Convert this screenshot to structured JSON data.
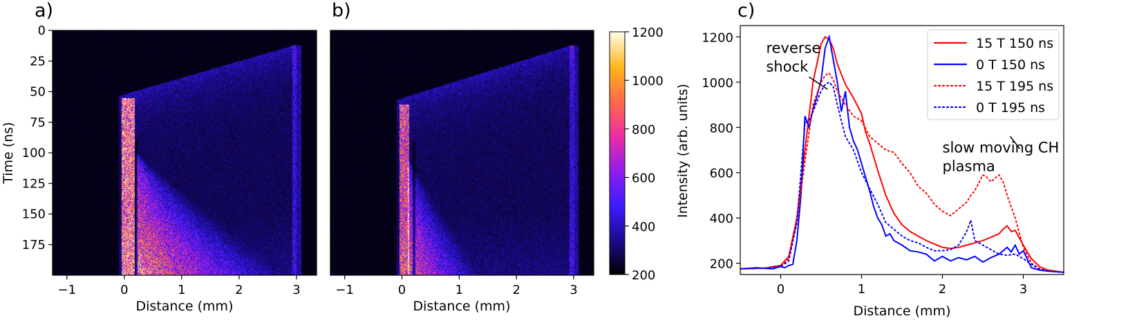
{
  "chart_data": [
    {
      "panel": "a)",
      "type": "heatmap",
      "xlabel": "Distance (mm)",
      "ylabel": "Time (ns)",
      "xlim": [
        -1.25,
        3.35
      ],
      "ylim": [
        0,
        200
      ],
      "y_inverted": true,
      "xticks": [
        -1,
        0,
        1,
        2,
        3
      ],
      "yticks": [
        0,
        25,
        50,
        75,
        100,
        125,
        150,
        175
      ],
      "colormap": "gnuplot2",
      "features": {
        "reverse_shock_column": {
          "x": [
            -0.05,
            0.18
          ],
          "t_start": 55
        },
        "ch_plasma_region": {
          "x": [
            0.2,
            2.8
          ],
          "t_start": 100
        },
        "precursor_front": {
          "t0_x": 0.0,
          "t0": 52,
          "x1": 2.95,
          "t1": 12
        },
        "far_edge": {
          "x": 3.0
        }
      }
    },
    {
      "panel": "b)",
      "type": "heatmap",
      "xlabel": "Distance (mm)",
      "xlim": [
        -1.25,
        3.35
      ],
      "ylim": [
        0,
        200
      ],
      "y_inverted": true,
      "xticks": [
        -1,
        0,
        1,
        2,
        3
      ],
      "colormap": "gnuplot2",
      "features": {
        "reverse_shock_column": {
          "x": [
            -0.05,
            0.12
          ],
          "t_start": 60
        },
        "ch_plasma_region": {
          "x": [
            0.1,
            1.4
          ],
          "t_start": 105
        },
        "precursor_front": {
          "t0_x": 0.0,
          "t0": 55,
          "x1": 2.95,
          "t1": 12
        },
        "far_edge": {
          "x": 3.0
        }
      }
    },
    {
      "panel": "colorbar",
      "type": "heatmap",
      "range": [
        200,
        1200
      ],
      "ticks": [
        200,
        400,
        600,
        800,
        1000,
        1200
      ],
      "colormap": "gnuplot2"
    },
    {
      "panel": "c)",
      "type": "line",
      "xlabel": "Distance (mm)",
      "ylabel": "Intensity (arb. units)",
      "xlim": [
        -0.5,
        3.5
      ],
      "ylim": [
        150,
        1250
      ],
      "xticks": [
        0,
        1,
        2,
        3
      ],
      "yticks": [
        200,
        400,
        600,
        800,
        1000,
        1200
      ],
      "legend_position": "top-right",
      "series": [
        {
          "name": "15 T 150 ns",
          "color": "#ff0000",
          "dash": "solid",
          "x": [
            -0.5,
            -0.2,
            0.0,
            0.1,
            0.2,
            0.3,
            0.4,
            0.5,
            0.55,
            0.6,
            0.65,
            0.7,
            0.8,
            0.9,
            1.0,
            1.05,
            1.1,
            1.2,
            1.3,
            1.4,
            1.5,
            1.6,
            1.7,
            1.8,
            1.9,
            2.0,
            2.1,
            2.2,
            2.3,
            2.4,
            2.5,
            2.6,
            2.7,
            2.75,
            2.8,
            2.85,
            2.9,
            3.0,
            3.1,
            3.2,
            3.3,
            3.4,
            3.5
          ],
          "y": [
            175,
            178,
            190,
            230,
            400,
            700,
            1000,
            1170,
            1200,
            1190,
            1150,
            1080,
            990,
            930,
            860,
            780,
            730,
            610,
            500,
            420,
            370,
            340,
            320,
            300,
            285,
            270,
            265,
            270,
            280,
            290,
            300,
            315,
            330,
            350,
            365,
            340,
            345,
            280,
            220,
            185,
            170,
            165,
            160
          ]
        },
        {
          "name": "0 T 150 ns",
          "color": "#0000ff",
          "dash": "solid",
          "x": [
            -0.5,
            -0.3,
            -0.1,
            0.0,
            0.05,
            0.1,
            0.15,
            0.2,
            0.25,
            0.3,
            0.35,
            0.4,
            0.45,
            0.5,
            0.55,
            0.6,
            0.65,
            0.7,
            0.75,
            0.8,
            0.85,
            0.9,
            0.95,
            1.0,
            1.05,
            1.1,
            1.15,
            1.2,
            1.25,
            1.3,
            1.35,
            1.4,
            1.5,
            1.6,
            1.7,
            1.8,
            1.9,
            2.0,
            2.1,
            2.2,
            2.3,
            2.4,
            2.5,
            2.6,
            2.7,
            2.8,
            2.85,
            2.9,
            2.95,
            3.0,
            3.1,
            3.2,
            3.3,
            3.5
          ],
          "y": [
            175,
            180,
            175,
            185,
            180,
            190,
            195,
            300,
            500,
            850,
            800,
            880,
            940,
            1010,
            1150,
            1200,
            1100,
            1000,
            870,
            960,
            800,
            740,
            700,
            640,
            580,
            520,
            450,
            400,
            370,
            320,
            330,
            300,
            280,
            255,
            250,
            240,
            210,
            230,
            210,
            225,
            215,
            230,
            205,
            225,
            240,
            270,
            250,
            280,
            240,
            255,
            180,
            170,
            165,
            160
          ]
        },
        {
          "name": "15 T 195 ns",
          "color": "#ff0000",
          "dash": "dotted",
          "x": [
            -0.5,
            -0.2,
            0.0,
            0.1,
            0.2,
            0.3,
            0.4,
            0.5,
            0.55,
            0.6,
            0.65,
            0.7,
            0.8,
            0.9,
            1.0,
            1.1,
            1.2,
            1.3,
            1.4,
            1.5,
            1.6,
            1.7,
            1.8,
            1.9,
            2.0,
            2.1,
            2.2,
            2.3,
            2.35,
            2.4,
            2.5,
            2.55,
            2.6,
            2.65,
            2.7,
            2.75,
            2.8,
            2.9,
            3.0,
            3.1,
            3.2,
            3.3,
            3.5
          ],
          "y": [
            175,
            178,
            185,
            220,
            380,
            650,
            900,
            1000,
            1030,
            1040,
            1010,
            960,
            900,
            850,
            830,
            760,
            730,
            700,
            690,
            640,
            600,
            540,
            510,
            460,
            430,
            410,
            440,
            470,
            500,
            520,
            590,
            580,
            560,
            575,
            590,
            560,
            500,
            400,
            270,
            200,
            175,
            165,
            160
          ]
        },
        {
          "name": "0 T 195 ns",
          "color": "#0000ff",
          "dash": "dotted",
          "x": [
            -0.5,
            -0.2,
            0.0,
            0.1,
            0.2,
            0.3,
            0.35,
            0.4,
            0.5,
            0.55,
            0.6,
            0.65,
            0.7,
            0.8,
            0.9,
            1.0,
            1.1,
            1.2,
            1.3,
            1.4,
            1.5,
            1.6,
            1.7,
            1.8,
            1.9,
            2.0,
            2.1,
            2.2,
            2.25,
            2.3,
            2.35,
            2.4,
            2.5,
            2.6,
            2.7,
            2.8,
            2.9,
            3.0,
            3.1,
            3.2,
            3.3,
            3.5
          ],
          "y": [
            175,
            178,
            185,
            210,
            380,
            820,
            830,
            870,
            960,
            990,
            1000,
            980,
            900,
            760,
            700,
            600,
            530,
            460,
            380,
            350,
            320,
            300,
            290,
            270,
            255,
            255,
            260,
            280,
            310,
            340,
            390,
            300,
            280,
            260,
            240,
            235,
            240,
            220,
            195,
            175,
            165,
            160
          ]
        }
      ],
      "annotations": [
        {
          "lines": [
            "reverse",
            "shock"
          ],
          "text_xy": [
            -0.18,
            1130
          ],
          "arrow_to": [
            0.1,
            1000
          ]
        },
        {
          "lines": [
            "slow moving CH",
            "plasma"
          ],
          "text_xy": [
            2.0,
            690
          ],
          "arrow_to": [
            2.8,
            630
          ]
        }
      ]
    }
  ]
}
